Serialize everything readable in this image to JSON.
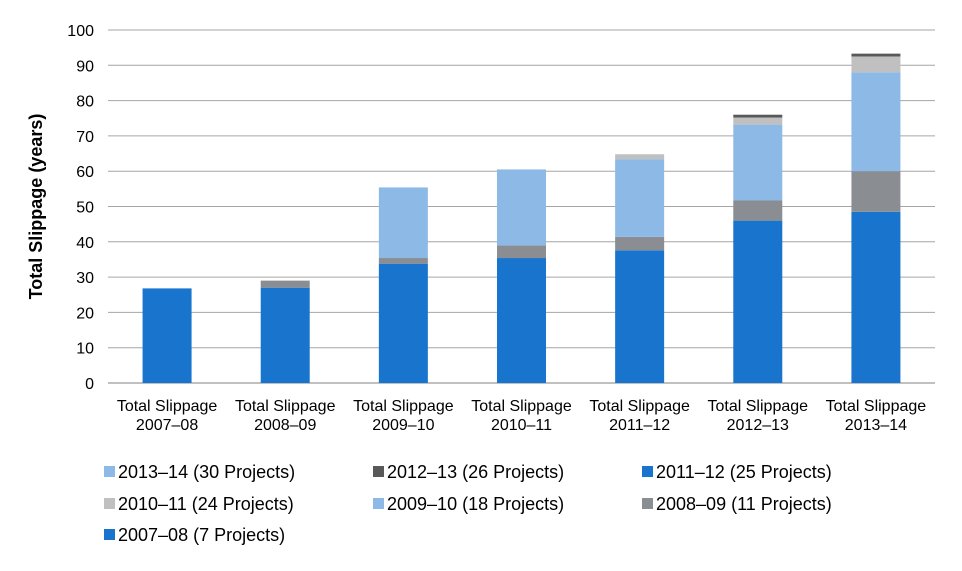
{
  "chart_data": {
    "type": "bar",
    "stacked": true,
    "ylabel": "Total Slippage (years)",
    "xlabel": "",
    "ylim": [
      0,
      100
    ],
    "yticks": [
      0,
      10,
      20,
      30,
      40,
      50,
      60,
      70,
      80,
      90,
      100
    ],
    "grid": true,
    "categories": [
      [
        "Total Slippage",
        "2007–08"
      ],
      [
        "Total Slippage",
        "2008–09"
      ],
      [
        "Total Slippage",
        "2009–10"
      ],
      [
        "Total Slippage",
        "2010–11"
      ],
      [
        "Total Slippage",
        "2011–12"
      ],
      [
        "Total Slippage",
        "2012–13"
      ],
      [
        "Total Slippage",
        "2013–14"
      ]
    ],
    "legend_position": "bottom",
    "legend_order": [
      "2013–14 (30 Projects)",
      "2012–13 (26 Projects)",
      "2011–12 (25 Projects)",
      "2010–11 (24 Projects)",
      "2009–10 (18 Projects)",
      "2008–09 (11 Projects)",
      "2007–08 (7 Projects)"
    ],
    "series": [
      {
        "name": "2007–08 (7 Projects)",
        "color": "#1874CD",
        "values": [
          26.8,
          27.0,
          33.8,
          35.4,
          37.6,
          46.0,
          48.5
        ]
      },
      {
        "name": "2008–09 (11 Projects)",
        "color": "#8A8D91",
        "values": [
          0,
          2.0,
          1.6,
          3.6,
          3.8,
          5.7,
          11.5
        ]
      },
      {
        "name": "2009–10 (18 Projects)",
        "color": "#8DB9E6",
        "values": [
          0,
          0,
          20.0,
          21.5,
          22.0,
          21.5,
          28.0
        ]
      },
      {
        "name": "2010–11 (24 Projects)",
        "color": "#C0C0C0",
        "values": [
          0,
          0,
          0,
          0,
          1.4,
          2.0,
          4.5
        ]
      },
      {
        "name": "2011–12 (25 Projects)",
        "color": "#1874CD",
        "values": [
          0,
          0,
          0,
          0,
          0,
          0,
          0
        ]
      },
      {
        "name": "2012–13 (26 Projects)",
        "color": "#595959",
        "values": [
          0,
          0,
          0,
          0,
          0,
          0.8,
          0.8
        ]
      },
      {
        "name": "2013–14 (30 Projects)",
        "color": "#8DB9E6",
        "values": [
          0,
          0,
          0,
          0,
          0,
          0,
          0
        ]
      }
    ]
  }
}
